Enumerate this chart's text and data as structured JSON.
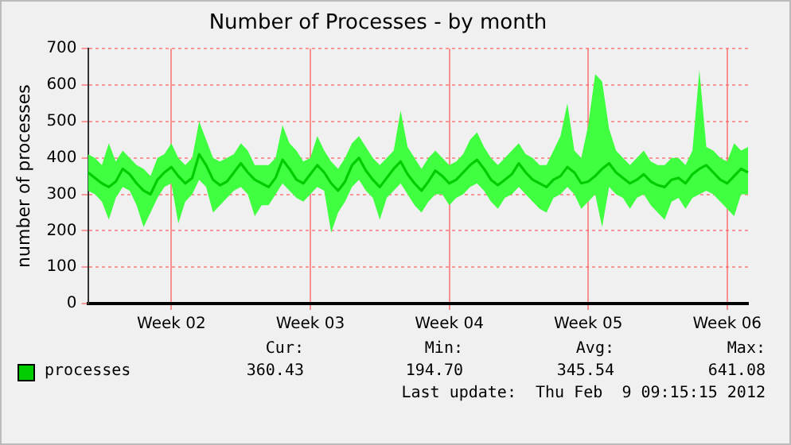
{
  "chart_data": {
    "type": "line",
    "title": "Number of Processes - by month",
    "ylabel": "number of processes",
    "categories": [
      null,
      null,
      null,
      null,
      null,
      null,
      null,
      null,
      null,
      null,
      null,
      null,
      "Week 02",
      null,
      null,
      null,
      null,
      null,
      null,
      null,
      null,
      null,
      null,
      null,
      null,
      null,
      null,
      null,
      null,
      null,
      null,
      null,
      "Week 03",
      null,
      null,
      null,
      null,
      null,
      null,
      null,
      null,
      null,
      null,
      null,
      null,
      null,
      null,
      null,
      null,
      null,
      null,
      null,
      "Week 04",
      null,
      null,
      null,
      null,
      null,
      null,
      null,
      null,
      null,
      null,
      null,
      null,
      null,
      null,
      null,
      null,
      null,
      null,
      null,
      "Week 05",
      null,
      null,
      null,
      null,
      null,
      null,
      null,
      null,
      null,
      null,
      null,
      null,
      null,
      null,
      null,
      null,
      null,
      null,
      null,
      "Week 06",
      null,
      null,
      null
    ],
    "series": [
      {
        "name": "processes",
        "color": "#00cc00",
        "values": [
          360,
          345,
          330,
          320,
          335,
          370,
          355,
          330,
          310,
          300,
          340,
          360,
          375,
          350,
          330,
          345,
          410,
          380,
          340,
          325,
          335,
          360,
          385,
          360,
          340,
          330,
          320,
          345,
          395,
          370,
          340,
          330,
          355,
          380,
          360,
          330,
          310,
          335,
          380,
          400,
          365,
          340,
          320,
          345,
          370,
          390,
          355,
          330,
          310,
          335,
          365,
          350,
          330,
          340,
          360,
          380,
          395,
          370,
          340,
          325,
          340,
          355,
          385,
          360,
          340,
          330,
          320,
          340,
          350,
          375,
          360,
          330,
          335,
          350,
          370,
          385,
          360,
          345,
          330,
          340,
          355,
          335,
          325,
          320,
          340,
          345,
          330,
          355,
          370,
          380,
          360,
          340,
          330,
          350,
          370,
          360
        ],
        "upper": [
          410,
          400,
          380,
          440,
          390,
          420,
          400,
          380,
          370,
          350,
          400,
          410,
          440,
          400,
          380,
          400,
          500,
          450,
          400,
          390,
          400,
          410,
          440,
          420,
          380,
          380,
          380,
          400,
          490,
          440,
          420,
          390,
          400,
          460,
          420,
          390,
          370,
          400,
          440,
          460,
          430,
          400,
          380,
          400,
          420,
          530,
          430,
          400,
          370,
          400,
          420,
          400,
          380,
          390,
          410,
          450,
          470,
          430,
          400,
          380,
          400,
          420,
          440,
          410,
          400,
          380,
          380,
          420,
          460,
          550,
          420,
          400,
          490,
          630,
          610,
          480,
          420,
          400,
          380,
          400,
          420,
          390,
          380,
          380,
          400,
          400,
          380,
          420,
          641,
          430,
          420,
          400,
          390,
          440,
          420,
          430
        ],
        "lower": [
          310,
          300,
          280,
          230,
          290,
          320,
          310,
          270,
          210,
          250,
          290,
          320,
          330,
          220,
          280,
          300,
          340,
          320,
          250,
          270,
          290,
          310,
          320,
          300,
          240,
          270,
          270,
          300,
          330,
          310,
          290,
          280,
          300,
          320,
          310,
          195,
          250,
          280,
          320,
          340,
          310,
          290,
          230,
          290,
          310,
          330,
          300,
          270,
          250,
          280,
          300,
          300,
          270,
          290,
          300,
          320,
          330,
          310,
          280,
          260,
          290,
          300,
          320,
          300,
          280,
          260,
          250,
          290,
          300,
          320,
          300,
          260,
          280,
          300,
          210,
          320,
          300,
          290,
          260,
          290,
          300,
          270,
          250,
          230,
          280,
          290,
          260,
          290,
          300,
          310,
          300,
          280,
          260,
          240,
          300,
          300
        ]
      }
    ],
    "ylim": [
      0,
      700
    ],
    "yticks": [
      0,
      100,
      200,
      300,
      400,
      500,
      600,
      700
    ],
    "grid": true,
    "legend": "bottom",
    "marker": "none",
    "line_style": "solid",
    "annotations": [
      "Cur:",
      "Min:",
      "Avg:",
      "Max:",
      "360.43",
      "194.70",
      "345.54",
      "641.08",
      "Last update:  Thu Feb  9 09:15:15 2012"
    ]
  }
}
